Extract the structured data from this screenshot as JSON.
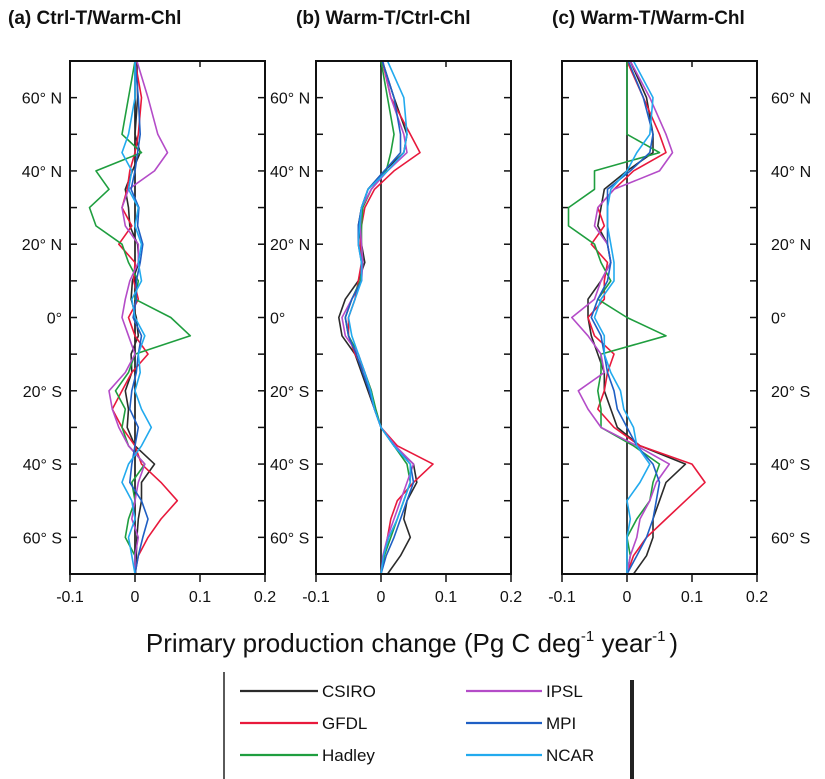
{
  "chart_data": {
    "type": "line",
    "xlabel": {
      "text": "Primary production change (Pg C deg",
      "sup1": "-1",
      "mid": " year",
      "sup2": "-1",
      "end": ")"
    },
    "xlim": [
      -0.1,
      0.2
    ],
    "xticks": [
      "-0.1",
      "0",
      "0.1",
      "0.2"
    ],
    "ylim": [
      -70,
      70
    ],
    "yticks": [
      {
        "value": 60,
        "label": "60° N"
      },
      {
        "value": 40,
        "label": "40° N"
      },
      {
        "value": 20,
        "label": "20° N"
      },
      {
        "value": 0,
        "label": "0°"
      },
      {
        "value": -20,
        "label": "20° S"
      },
      {
        "value": -40,
        "label": "40° S"
      },
      {
        "value": -60,
        "label": "60° S"
      }
    ],
    "legend_position": "bottom-center",
    "colors": {
      "CSIRO": "#2b2b2b",
      "GFDL": "#e8193c",
      "Hadley": "#1f9e3f",
      "IPSL": "#b44cc8",
      "MPI": "#1f5fc4",
      "NCAR": "#22aaee"
    },
    "latitudes": [
      70,
      60,
      50,
      45,
      40,
      35,
      30,
      25,
      20,
      15,
      10,
      5,
      0,
      -5,
      -10,
      -15,
      -20,
      -25,
      -30,
      -35,
      -40,
      -45,
      -50,
      -55,
      -60,
      -65,
      -70
    ],
    "panels": [
      {
        "title": "(a) Ctrl-T/Warm-Chl",
        "series": [
          {
            "name": "CSIRO",
            "values": [
              0.003,
              0.004,
              0.0,
              0.008,
              -0.004,
              -0.015,
              -0.01,
              -0.008,
              0.004,
              0.006,
              -0.004,
              -0.006,
              0.002,
              0.005,
              -0.006,
              -0.005,
              -0.015,
              -0.01,
              -0.012,
              0.0,
              0.03,
              0.01,
              0.01,
              0.005,
              0.003,
              0.002,
              0.001
            ]
          },
          {
            "name": "GFDL",
            "values": [
              0.0,
              0.01,
              0.005,
              0.0,
              -0.008,
              -0.012,
              -0.02,
              -0.005,
              -0.025,
              0.0,
              -0.002,
              0.005,
              -0.01,
              0.0,
              0.02,
              -0.005,
              -0.02,
              -0.035,
              -0.02,
              0.0,
              0.01,
              0.04,
              0.065,
              0.04,
              0.02,
              0.005,
              0.0
            ]
          },
          {
            "name": "Hadley",
            "values": [
              0.0,
              -0.01,
              -0.02,
              0.01,
              -0.06,
              -0.04,
              -0.07,
              -0.06,
              -0.02,
              -0.01,
              0.005,
              0.0,
              0.055,
              0.085,
              0.0,
              -0.01,
              -0.03,
              -0.015,
              -0.02,
              -0.01,
              0.015,
              -0.005,
              0.0,
              -0.01,
              -0.015,
              0.0,
              0.0
            ]
          },
          {
            "name": "IPSL",
            "values": [
              0.003,
              0.02,
              0.035,
              0.05,
              0.03,
              -0.01,
              -0.02,
              -0.015,
              0.005,
              0.005,
              -0.008,
              -0.015,
              -0.02,
              -0.01,
              0.0,
              -0.015,
              -0.04,
              -0.035,
              -0.025,
              -0.01,
              0.015,
              0.005,
              0.0,
              -0.005,
              0.005,
              0.0,
              0.0
            ]
          },
          {
            "name": "MPI",
            "values": [
              0.0,
              0.005,
              0.008,
              0.004,
              0.0,
              -0.006,
              0.006,
              0.004,
              0.012,
              0.008,
              0.002,
              0.002,
              -0.003,
              0.01,
              0.005,
              0.002,
              -0.005,
              -0.008,
              0.005,
              0.0,
              -0.005,
              -0.008,
              0.01,
              0.02,
              0.012,
              0.005,
              0.0
            ]
          },
          {
            "name": "NCAR",
            "values": [
              0.0,
              0.0,
              -0.01,
              -0.02,
              -0.005,
              -0.01,
              0.005,
              0.0,
              0.01,
              0.005,
              0.01,
              -0.005,
              0.0,
              0.015,
              0.005,
              0.008,
              0.0,
              0.01,
              0.025,
              0.01,
              -0.01,
              -0.02,
              -0.005,
              0.0,
              -0.01,
              -0.005,
              0.0
            ]
          }
        ]
      },
      {
        "title": "(b) Warm-T/Ctrl-Chl",
        "series": [
          {
            "name": "CSIRO",
            "values": [
              0.002,
              0.02,
              0.04,
              0.035,
              0.005,
              -0.02,
              -0.03,
              -0.035,
              -0.03,
              -0.025,
              -0.035,
              -0.055,
              -0.065,
              -0.06,
              -0.04,
              -0.03,
              -0.02,
              -0.01,
              0.0,
              0.02,
              0.05,
              0.055,
              0.04,
              0.035,
              0.045,
              0.03,
              0.01
            ]
          },
          {
            "name": "GFDL",
            "values": [
              0.002,
              0.015,
              0.045,
              0.06,
              0.02,
              -0.01,
              -0.025,
              -0.03,
              -0.032,
              -0.03,
              -0.035,
              -0.04,
              -0.05,
              -0.05,
              -0.04,
              -0.025,
              -0.015,
              -0.01,
              0.0,
              0.025,
              0.08,
              0.05,
              0.025,
              0.015,
              0.01,
              0.005,
              0.0
            ]
          },
          {
            "name": "Hadley",
            "values": [
              0.0,
              0.01,
              0.02,
              0.015,
              0.008,
              -0.015,
              -0.028,
              -0.03,
              -0.03,
              -0.028,
              -0.032,
              -0.045,
              -0.055,
              -0.05,
              -0.035,
              -0.025,
              -0.015,
              -0.008,
              0.0,
              0.02,
              0.04,
              0.045,
              0.035,
              0.025,
              0.015,
              0.005,
              0.0
            ]
          },
          {
            "name": "IPSL",
            "values": [
              0.003,
              0.015,
              0.035,
              0.04,
              0.01,
              -0.015,
              -0.03,
              -0.032,
              -0.03,
              -0.028,
              -0.03,
              -0.045,
              -0.06,
              -0.055,
              -0.035,
              -0.025,
              -0.018,
              -0.01,
              0.0,
              0.022,
              0.05,
              0.04,
              0.03,
              0.02,
              0.01,
              0.003,
              0.0
            ]
          },
          {
            "name": "MPI",
            "values": [
              0.002,
              0.02,
              0.03,
              0.03,
              0.005,
              -0.02,
              -0.03,
              -0.035,
              -0.035,
              -0.03,
              -0.03,
              -0.045,
              -0.055,
              -0.05,
              -0.038,
              -0.028,
              -0.018,
              -0.01,
              0.0,
              0.02,
              0.045,
              0.05,
              0.04,
              0.03,
              0.02,
              0.008,
              0.0
            ]
          },
          {
            "name": "NCAR",
            "values": [
              0.01,
              0.035,
              0.04,
              0.035,
              0.01,
              -0.02,
              -0.03,
              -0.033,
              -0.035,
              -0.03,
              -0.03,
              -0.04,
              -0.05,
              -0.045,
              -0.035,
              -0.025,
              -0.016,
              -0.01,
              0.0,
              0.02,
              0.045,
              0.045,
              0.035,
              0.025,
              0.012,
              0.004,
              0.0
            ]
          }
        ]
      },
      {
        "title": "(c) Warm-T/Warm-Chl",
        "series": [
          {
            "name": "CSIRO",
            "values": [
              0.005,
              0.03,
              0.04,
              0.04,
              0.0,
              -0.035,
              -0.04,
              -0.045,
              -0.03,
              -0.025,
              -0.04,
              -0.06,
              -0.06,
              -0.055,
              -0.045,
              -0.035,
              -0.035,
              -0.025,
              -0.015,
              0.02,
              0.09,
              0.06,
              0.05,
              0.04,
              0.04,
              0.03,
              0.01
            ]
          },
          {
            "name": "GFDL",
            "values": [
              0.0,
              0.025,
              0.05,
              0.06,
              0.01,
              -0.02,
              -0.045,
              -0.035,
              -0.055,
              -0.03,
              -0.035,
              -0.035,
              -0.06,
              -0.05,
              -0.02,
              -0.03,
              -0.035,
              -0.045,
              -0.02,
              0.02,
              0.1,
              0.12,
              0.09,
              0.06,
              0.03,
              0.01,
              0.0
            ]
          },
          {
            "name": "Hadley",
            "values": [
              0.0,
              0.0,
              0.0,
              0.05,
              -0.05,
              -0.05,
              -0.09,
              -0.09,
              -0.05,
              -0.04,
              -0.025,
              -0.045,
              0.0,
              0.06,
              -0.04,
              -0.04,
              -0.045,
              -0.04,
              -0.04,
              0.01,
              0.05,
              0.04,
              0.035,
              0.015,
              0.0,
              0.005,
              0.0
            ]
          },
          {
            "name": "IPSL",
            "values": [
              0.005,
              0.035,
              0.06,
              0.07,
              0.05,
              -0.02,
              -0.045,
              -0.05,
              -0.03,
              -0.025,
              -0.04,
              -0.05,
              -0.085,
              -0.06,
              -0.04,
              -0.035,
              -0.075,
              -0.06,
              -0.04,
              0.015,
              0.065,
              0.045,
              0.035,
              0.02,
              0.015,
              0.005,
              0.0
            ]
          },
          {
            "name": "MPI",
            "values": [
              0.002,
              0.025,
              0.04,
              0.035,
              0.005,
              -0.03,
              -0.03,
              -0.03,
              -0.03,
              -0.025,
              -0.03,
              -0.045,
              -0.055,
              -0.04,
              -0.035,
              -0.03,
              -0.02,
              -0.015,
              0.0,
              0.015,
              0.04,
              0.05,
              0.045,
              0.04,
              0.03,
              0.015,
              0.0
            ]
          },
          {
            "name": "NCAR",
            "values": [
              0.01,
              0.04,
              0.035,
              0.015,
              0.0,
              -0.025,
              -0.03,
              -0.03,
              -0.025,
              -0.02,
              -0.02,
              -0.04,
              -0.05,
              -0.035,
              -0.035,
              -0.025,
              -0.01,
              -0.005,
              0.01,
              0.015,
              0.035,
              0.02,
              0.0,
              0.005,
              0.0,
              0.0,
              0.0
            ]
          }
        ]
      }
    ]
  }
}
